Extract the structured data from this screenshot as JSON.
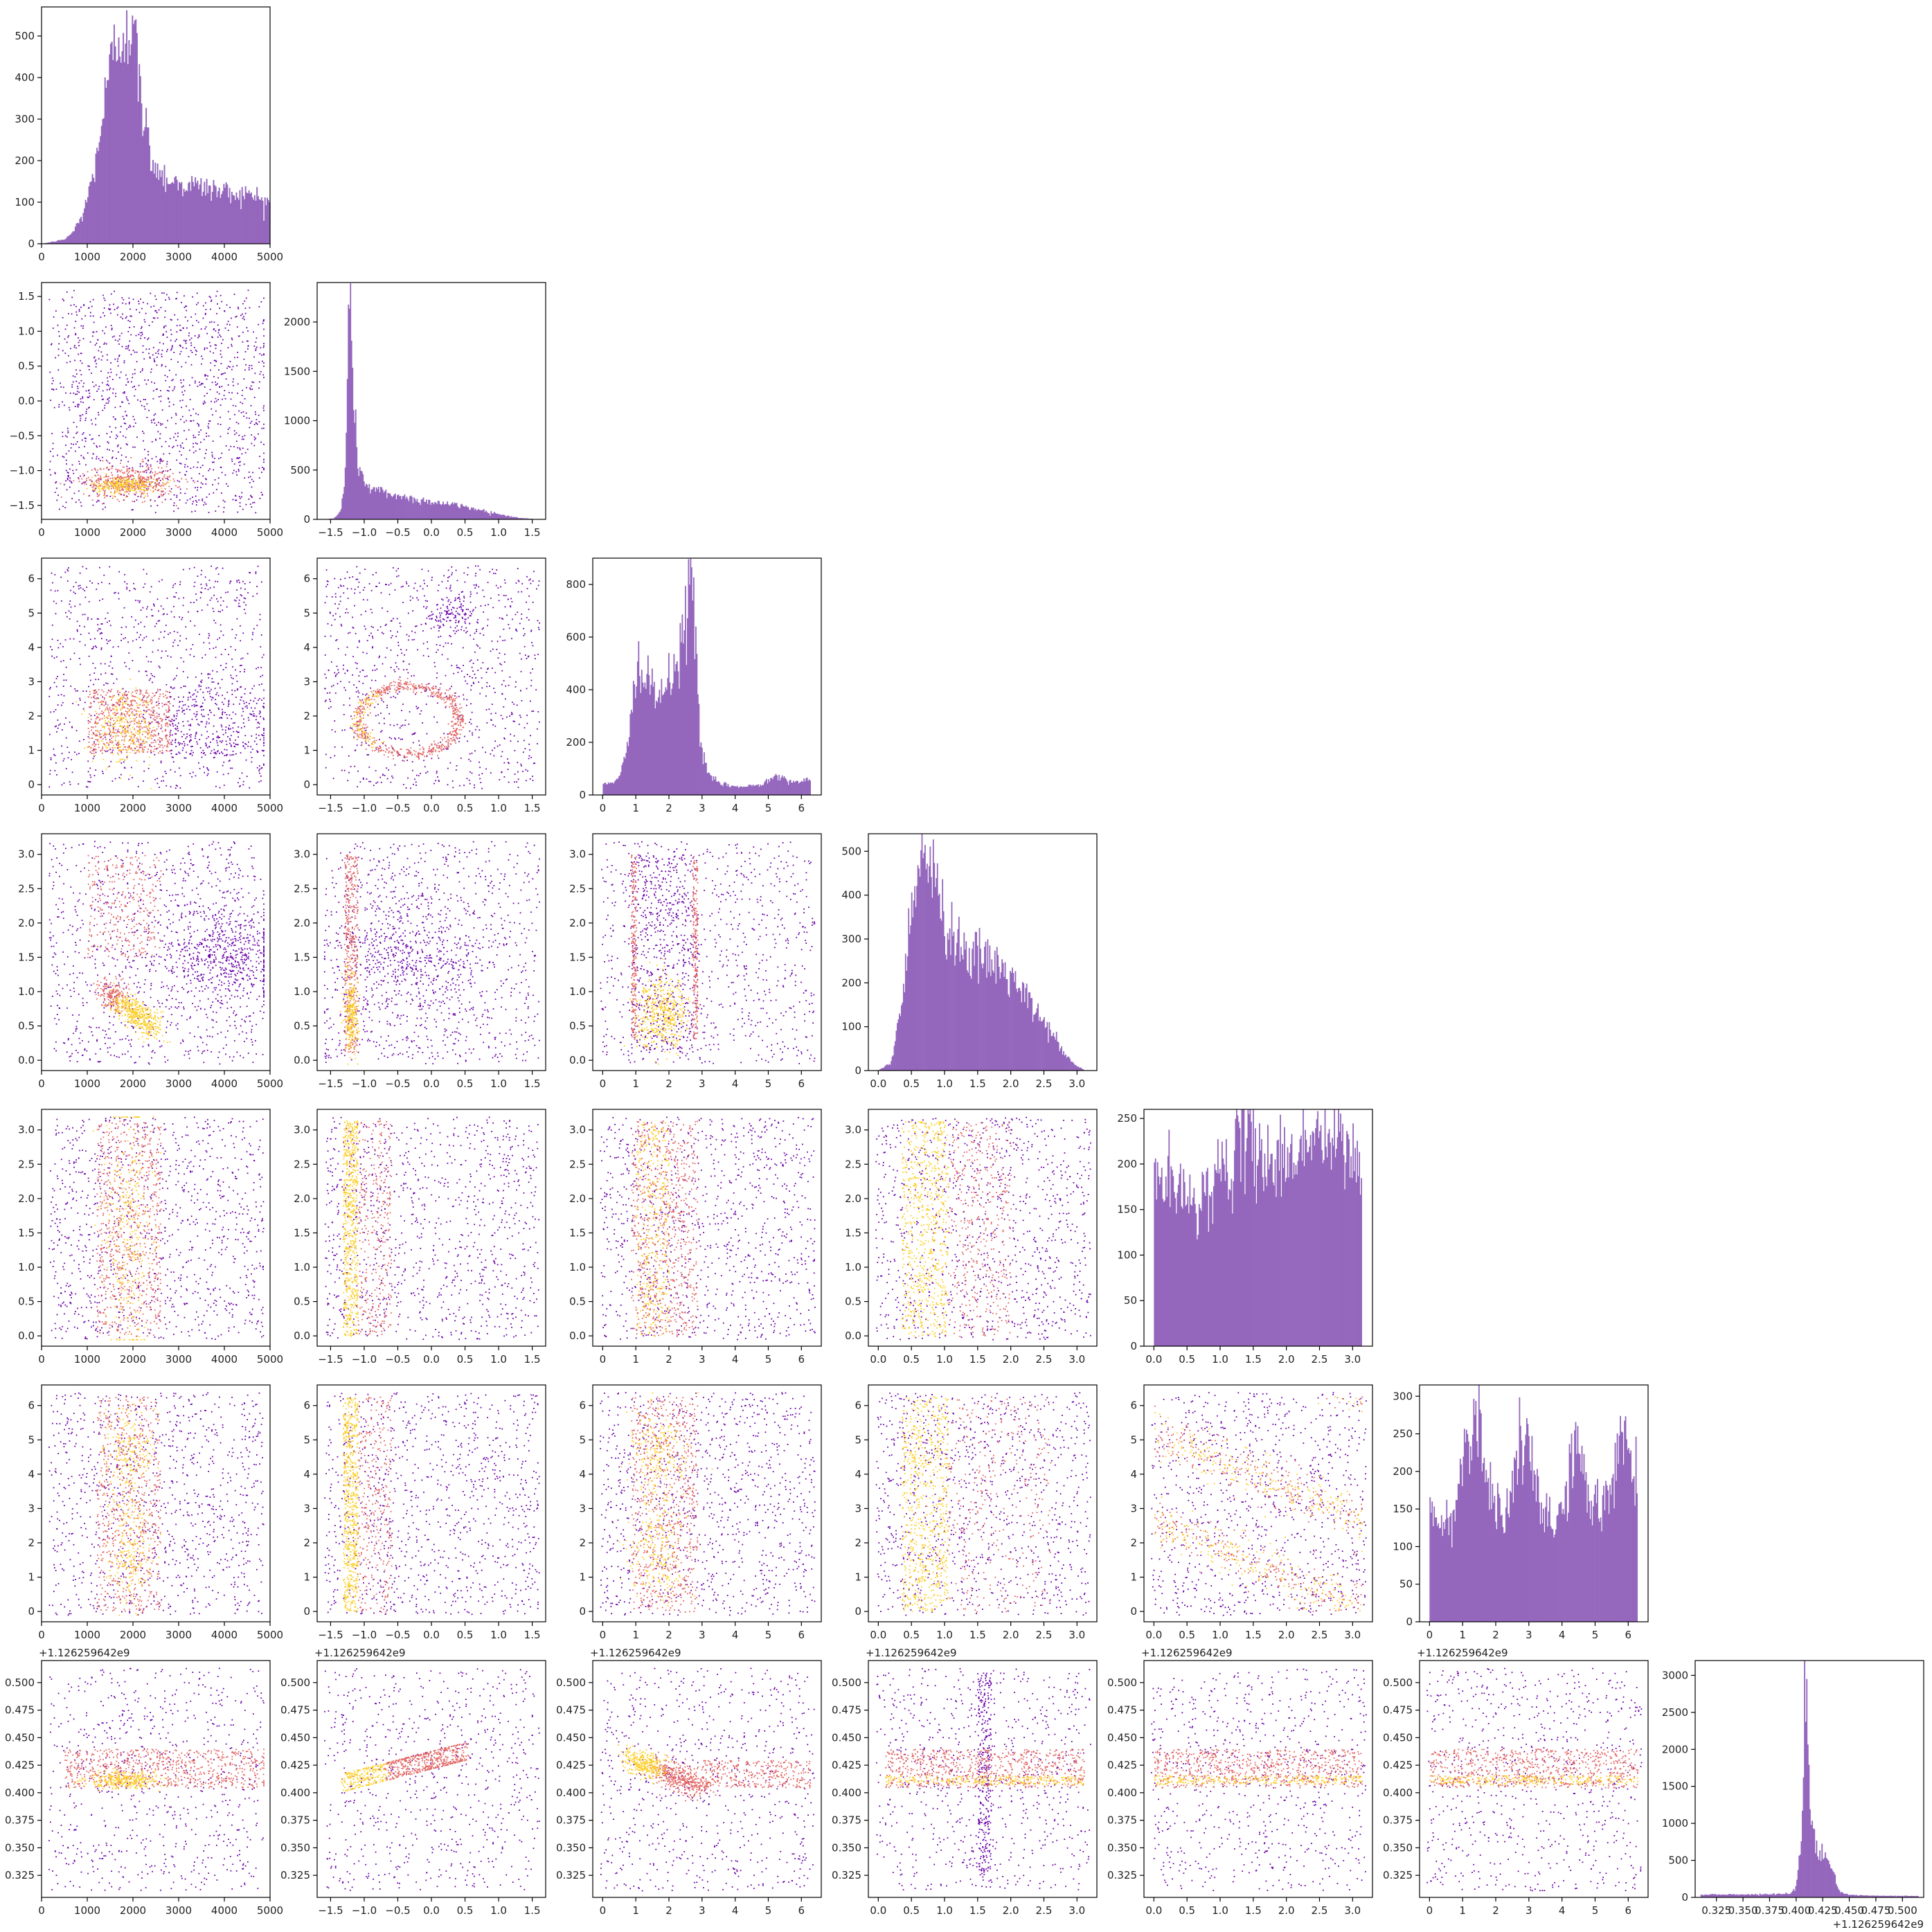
{
  "figure": {
    "type": "corner-plot"
  },
  "colors": {
    "histogram": "#9467bd",
    "density_low": "#6a00a8",
    "density_mid": "#e16462",
    "density_high": "#fcce25"
  },
  "chart_data": {
    "type": "corner",
    "histogram_bins": 200,
    "parameters": [
      {
        "index": 0,
        "range": [
          0,
          5000
        ],
        "ticks": [
          0,
          1000,
          2000,
          3000,
          4000,
          5000
        ],
        "tick_labels": [
          "0",
          "1000",
          "2000",
          "3000",
          "4000",
          "5000"
        ],
        "offset_label": ""
      },
      {
        "index": 1,
        "range": [
          -1.7,
          1.7
        ],
        "ticks": [
          -1.5,
          -1.0,
          -0.5,
          0.0,
          0.5,
          1.0,
          1.5
        ],
        "tick_labels": [
          "−1.5",
          "−1.0",
          "−0.5",
          "0.0",
          "0.5",
          "1.0",
          "1.5"
        ],
        "offset_label": ""
      },
      {
        "index": 2,
        "range": [
          -0.3,
          6.6
        ],
        "ticks": [
          0,
          1,
          2,
          3,
          4,
          5,
          6
        ],
        "tick_labels": [
          "0",
          "1",
          "2",
          "3",
          "4",
          "5",
          "6"
        ],
        "offset_label": ""
      },
      {
        "index": 3,
        "range": [
          -0.15,
          3.3
        ],
        "ticks": [
          0.0,
          0.5,
          1.0,
          1.5,
          2.0,
          2.5,
          3.0
        ],
        "tick_labels": [
          "0.0",
          "0.5",
          "1.0",
          "1.5",
          "2.0",
          "2.5",
          "3.0"
        ],
        "offset_label": ""
      },
      {
        "index": 4,
        "range": [
          -0.15,
          3.3
        ],
        "ticks": [
          0.0,
          0.5,
          1.0,
          1.5,
          2.0,
          2.5,
          3.0
        ],
        "tick_labels": [
          "0.0",
          "0.5",
          "1.0",
          "1.5",
          "2.0",
          "2.5",
          "3.0"
        ],
        "offset_label": ""
      },
      {
        "index": 5,
        "range": [
          -0.3,
          6.6
        ],
        "ticks": [
          0,
          1,
          2,
          3,
          4,
          5,
          6
        ],
        "tick_labels": [
          "0",
          "1",
          "2",
          "3",
          "4",
          "5",
          "6"
        ],
        "offset_label": ""
      },
      {
        "index": 6,
        "range": [
          0.305,
          0.52
        ],
        "ticks": [
          0.325,
          0.35,
          0.375,
          0.4,
          0.425,
          0.45,
          0.475,
          0.5
        ],
        "tick_labels": [
          "0.325",
          "0.350",
          "0.375",
          "0.400",
          "0.425",
          "0.450",
          "0.475",
          "0.500"
        ],
        "offset_label": "+1.126259642e9"
      }
    ],
    "histograms": [
      {
        "parameter": 0,
        "ylim": [
          0,
          570
        ],
        "yticks": [
          0,
          100,
          200,
          300,
          400,
          500
        ],
        "x": [
          0,
          500,
          700,
          900,
          1100,
          1300,
          1500,
          1700,
          1850,
          1950,
          2050,
          2200,
          2400,
          2600,
          2800,
          3000,
          3300,
          3600,
          4000,
          4400,
          4800,
          5000
        ],
        "counts": [
          0,
          10,
          30,
          70,
          150,
          280,
          420,
          500,
          540,
          530,
          470,
          320,
          210,
          170,
          155,
          145,
          140,
          135,
          125,
          120,
          110,
          100
        ]
      },
      {
        "parameter": 1,
        "ylim": [
          0,
          2400
        ],
        "yticks": [
          0,
          500,
          1000,
          1500,
          2000
        ],
        "x": [
          -1.6,
          -1.45,
          -1.35,
          -1.28,
          -1.24,
          -1.2,
          -1.15,
          -1.1,
          -1.0,
          -0.9,
          -0.7,
          -0.5,
          -0.3,
          -0.1,
          0.1,
          0.3,
          0.5,
          0.7,
          0.9,
          1.1,
          1.3,
          1.5
        ],
        "counts": [
          0,
          10,
          80,
          500,
          1800,
          2250,
          1100,
          600,
          380,
          310,
          270,
          240,
          210,
          190,
          170,
          150,
          130,
          100,
          70,
          40,
          15,
          5
        ]
      },
      {
        "parameter": 2,
        "ylim": [
          0,
          900
        ],
        "yticks": [
          0,
          200,
          400,
          600,
          800
        ],
        "x": [
          0,
          0.5,
          0.8,
          0.95,
          1.1,
          1.3,
          1.6,
          1.9,
          2.2,
          2.45,
          2.6,
          2.7,
          2.8,
          2.95,
          3.2,
          3.6,
          4.2,
          4.8,
          5.2,
          5.6,
          6.0,
          6.28
        ],
        "counts": [
          40,
          60,
          200,
          520,
          480,
          420,
          380,
          400,
          470,
          600,
          800,
          860,
          600,
          200,
          70,
          40,
          30,
          40,
          80,
          55,
          50,
          55
        ]
      },
      {
        "parameter": 3,
        "ylim": [
          0,
          540
        ],
        "yticks": [
          0,
          100,
          200,
          300,
          400,
          500
        ],
        "x": [
          0,
          0.2,
          0.35,
          0.5,
          0.6,
          0.65,
          0.75,
          0.9,
          1.05,
          1.2,
          1.4,
          1.6,
          1.8,
          2.0,
          2.2,
          2.4,
          2.6,
          2.8,
          2.95,
          3.1
        ],
        "counts": [
          0,
          20,
          150,
          380,
          480,
          520,
          470,
          400,
          330,
          300,
          260,
          250,
          240,
          210,
          170,
          130,
          90,
          40,
          15,
          2
        ]
      },
      {
        "parameter": 4,
        "ylim": [
          0,
          260
        ],
        "yticks": [
          0,
          50,
          100,
          150,
          200,
          250
        ],
        "x": [
          0,
          0.2,
          0.4,
          0.6,
          0.8,
          1.0,
          1.2,
          1.4,
          1.6,
          1.8,
          2.0,
          2.2,
          2.4,
          2.6,
          2.8,
          3.0,
          3.14
        ],
        "counts": [
          190,
          180,
          165,
          160,
          170,
          190,
          210,
          225,
          215,
          200,
          205,
          220,
          230,
          225,
          220,
          210,
          200
        ]
      },
      {
        "parameter": 5,
        "ylim": [
          0,
          315
        ],
        "yticks": [
          0,
          50,
          100,
          150,
          200,
          250,
          300
        ],
        "x": [
          0,
          0.4,
          0.8,
          1.2,
          1.4,
          1.8,
          2.2,
          2.6,
          2.9,
          3.3,
          3.7,
          4.1,
          4.4,
          4.8,
          5.2,
          5.6,
          5.9,
          6.28
        ],
        "counts": [
          150,
          120,
          160,
          260,
          290,
          180,
          140,
          200,
          250,
          150,
          130,
          160,
          250,
          160,
          150,
          200,
          260,
          170
        ]
      },
      {
        "parameter": 6,
        "ylim": [
          0,
          3200
        ],
        "yticks": [
          0,
          500,
          1000,
          1500,
          2000,
          2500,
          3000
        ],
        "x": [
          0.31,
          0.36,
          0.395,
          0.4,
          0.405,
          0.408,
          0.41,
          0.412,
          0.415,
          0.42,
          0.425,
          0.428,
          0.432,
          0.436,
          0.44,
          0.445,
          0.45,
          0.48,
          0.515
        ],
        "counts": [
          40,
          40,
          50,
          150,
          800,
          3000,
          2500,
          1500,
          900,
          700,
          600,
          550,
          450,
          300,
          100,
          50,
          30,
          20,
          20
        ]
      }
    ],
    "scatter_panels": [
      {
        "x_param": 0,
        "y_param": 1,
        "density": "dense cluster at x 1000–2600, y ≈ −1.2"
      },
      {
        "x_param": 0,
        "y_param": 2,
        "density": "dense band y 0.9–2.8 for x 1000–2800"
      },
      {
        "x_param": 1,
        "y_param": 2,
        "density": "ring centred near (−0.6, 1.9)"
      },
      {
        "x_param": 0,
        "y_param": 3,
        "density": "dense arc from (1500, 0.9) to (2500, 0.5)"
      },
      {
        "x_param": 1,
        "y_param": 3,
        "density": "dense strip at x ≈ −1.2"
      },
      {
        "x_param": 2,
        "y_param": 3,
        "density": "dense block x 0.9–2.8, y 0.3–1.0"
      },
      {
        "x_param": 0,
        "y_param": 4,
        "density": "vertical band x 1200–2600"
      },
      {
        "x_param": 1,
        "y_param": 4,
        "density": "vertical band x ≈ −1.2"
      },
      {
        "x_param": 2,
        "y_param": 4,
        "density": "vertical band x 0.9–2.8"
      },
      {
        "x_param": 3,
        "y_param": 4,
        "density": "vertical band x 0.4–1.0"
      },
      {
        "x_param": 0,
        "y_param": 5,
        "density": "vertical band x 1200–2600"
      },
      {
        "x_param": 1,
        "y_param": 5,
        "density": "vertical band x ≈ −1.2"
      },
      {
        "x_param": 2,
        "y_param": 5,
        "density": "vertical band x 0.9–2.8"
      },
      {
        "x_param": 3,
        "y_param": 5,
        "density": "vertical band x 0.4–1.0 with holes near x 1.6"
      },
      {
        "x_param": 4,
        "y_param": 5,
        "density": "diagonal bands with negative slope"
      },
      {
        "x_param": 0,
        "y_param": 6,
        "density": "horizontal band y 0.405–0.44"
      },
      {
        "x_param": 1,
        "y_param": 6,
        "density": "tilted ellipse from (−1.3, 0.41) to (0.5, 0.44)"
      },
      {
        "x_param": 2,
        "y_param": 6,
        "density": "curved band from (0.8, 0.43) to (3, 0.405)"
      },
      {
        "x_param": 3,
        "y_param": 6,
        "density": "horizontal band y 0.405–0.44, vertical spread at x 1.6"
      },
      {
        "x_param": 4,
        "y_param": 6,
        "density": "horizontal band y 0.405–0.44"
      },
      {
        "x_param": 5,
        "y_param": 6,
        "density": "horizontal band y 0.405–0.44"
      }
    ]
  }
}
